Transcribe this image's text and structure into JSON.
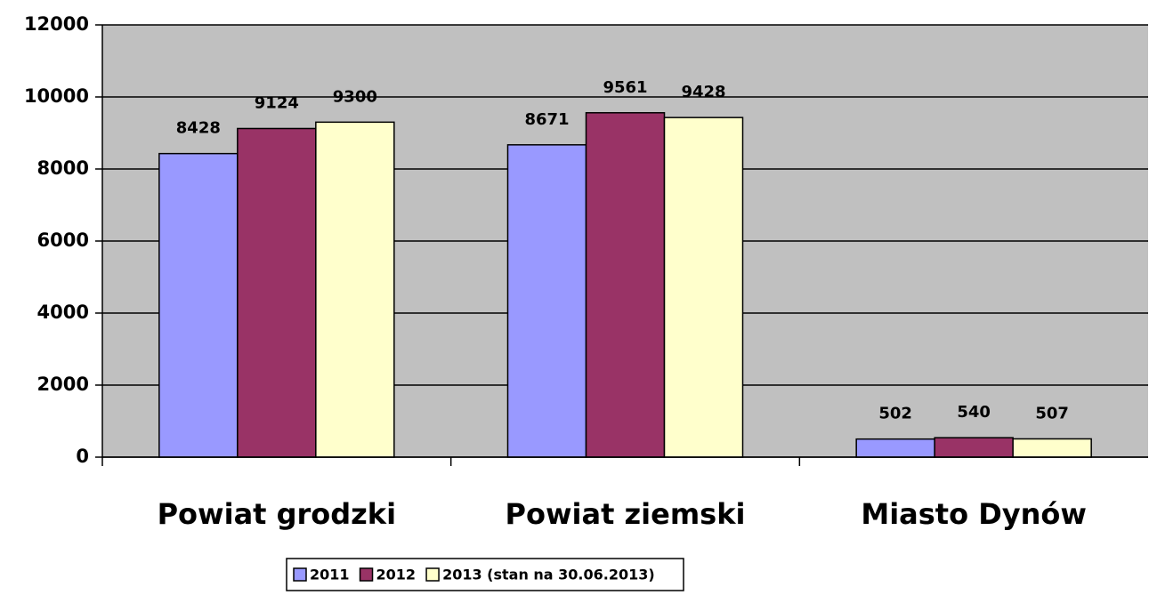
{
  "chart_data": {
    "type": "bar",
    "categories": [
      "Powiat grodzki",
      "Powiat ziemski",
      "Miasto Dynów"
    ],
    "series": [
      {
        "name": "2011",
        "color": "#9999ff",
        "values": [
          8428,
          8671,
          502
        ]
      },
      {
        "name": "2012",
        "color": "#993366",
        "values": [
          9124,
          9561,
          540
        ]
      },
      {
        "name": "2013 (stan na 30.06.2013)",
        "color": "#ffffcc",
        "values": [
          9300,
          9428,
          507
        ]
      }
    ],
    "ylim": [
      0,
      12000
    ],
    "yticks": [
      0,
      2000,
      4000,
      6000,
      8000,
      10000,
      12000
    ],
    "grid": true,
    "legend": "bottom",
    "background": "#c0c0c0"
  }
}
